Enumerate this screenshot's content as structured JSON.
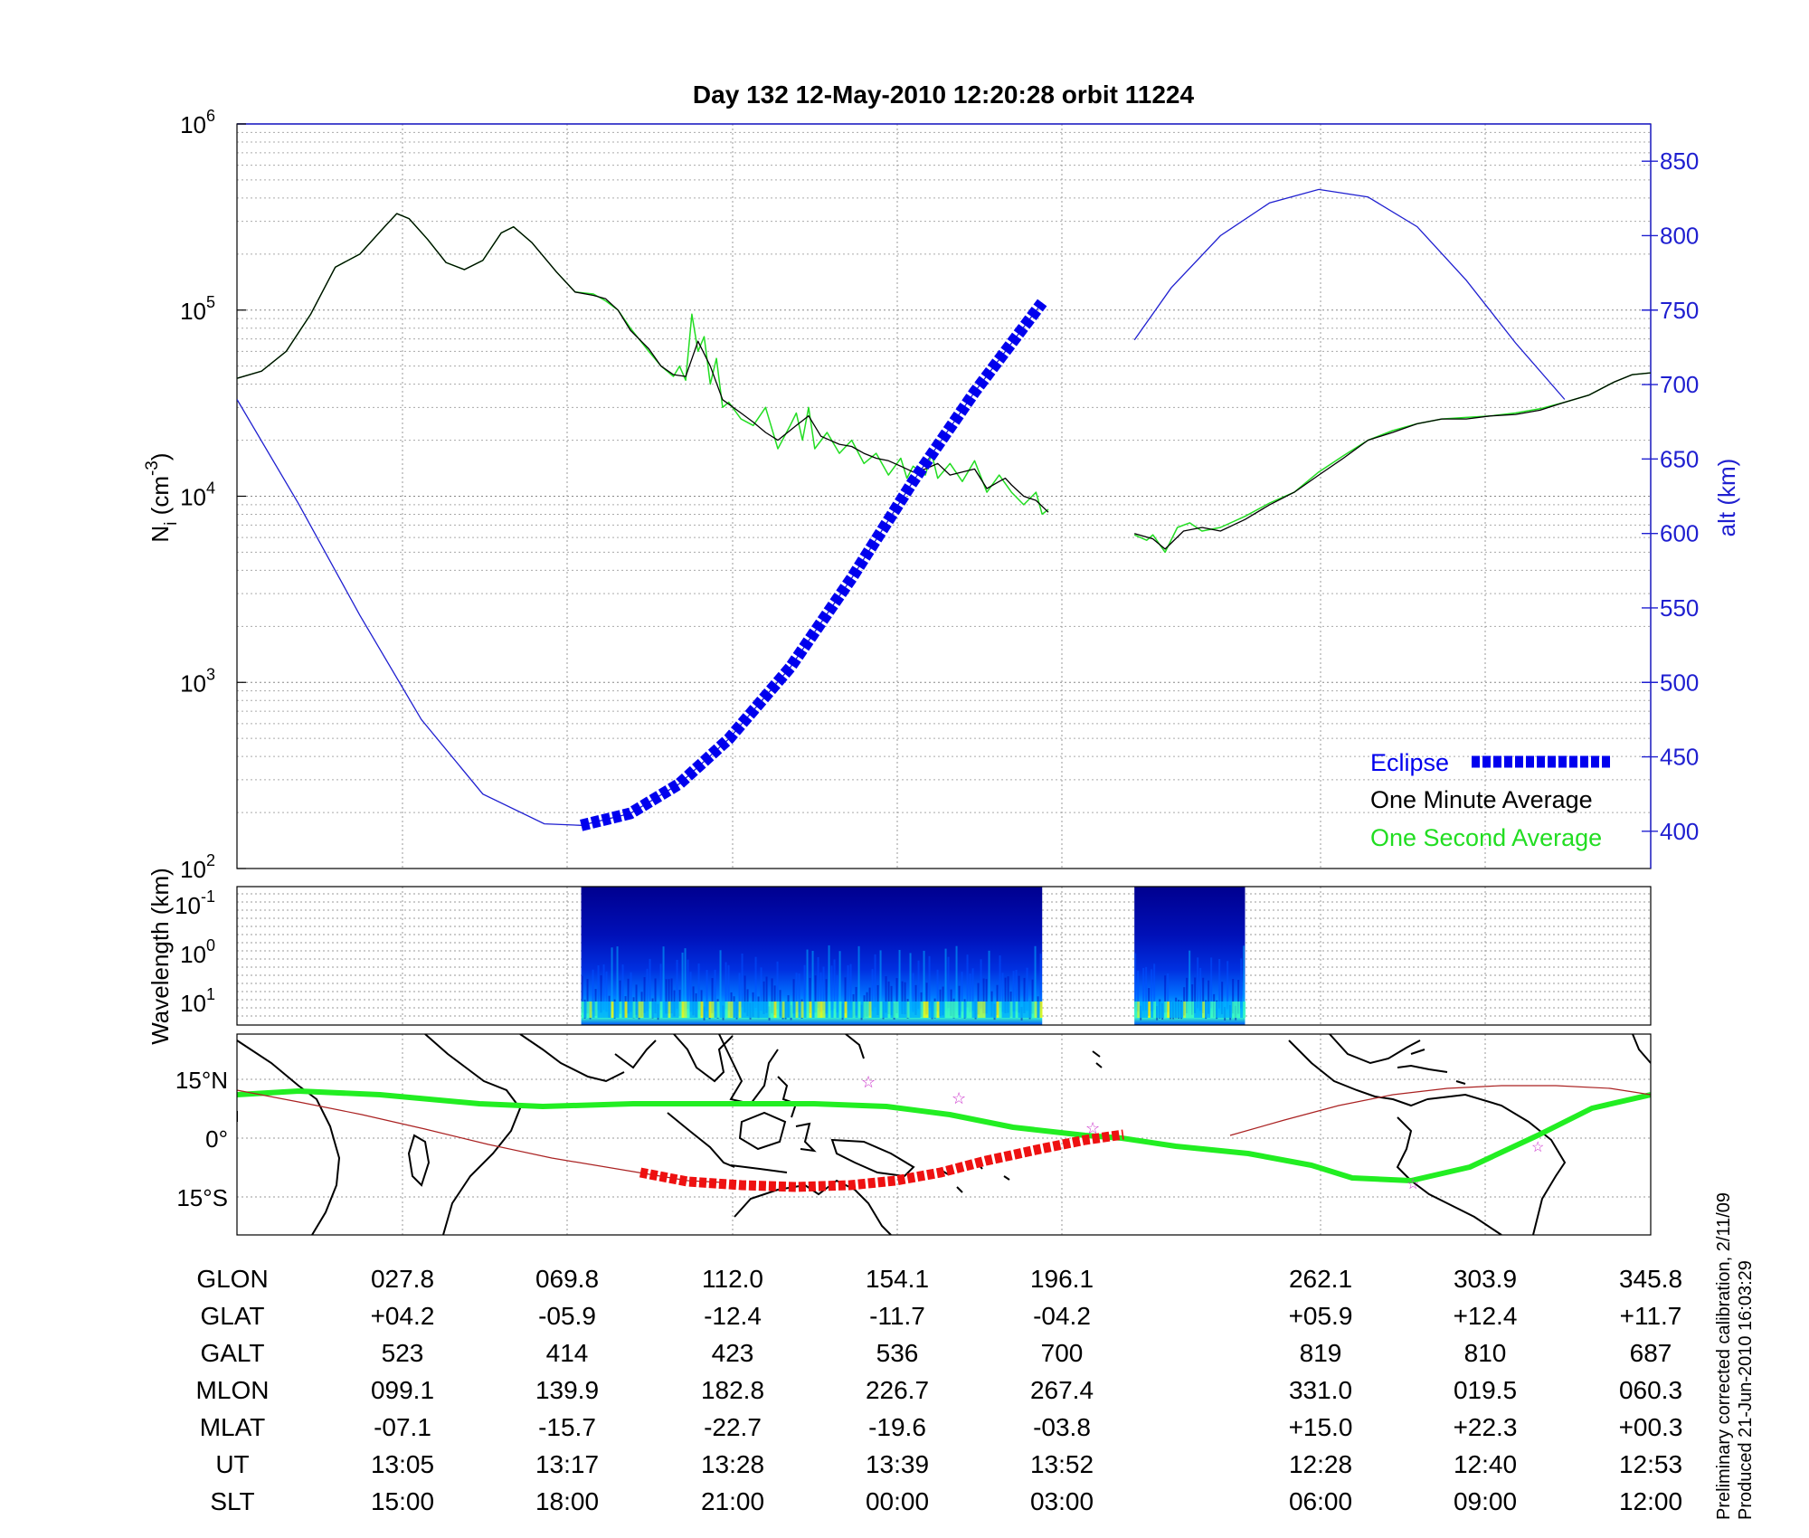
{
  "title": "Day 132  12-May-2010 12:20:28   orbit 11224",
  "colors": {
    "eclipse": "#0000ee",
    "one_minute": "#000000",
    "one_second": "#22dd22",
    "altitude_axis": "#1f1fd0",
    "map_track": "#22ee22",
    "map_eclipse": "#ee1111",
    "subsat_line": "#aa2222",
    "map_stars": "#cc33cc"
  },
  "chart_data": [
    {
      "type": "line",
      "panel": "density",
      "ylabel": "N_i (cm^-3)",
      "ylabel_main": "N",
      "ylabel_sub": "i",
      "ylabel_unit": " (cm",
      "ylabel_exp": "-3",
      "ylabel_close": ")",
      "yscale": "log",
      "ylim": [
        100,
        1000000
      ],
      "y_ticks": [
        {
          "base": "10",
          "exp": "2",
          "value": 100
        },
        {
          "base": "10",
          "exp": "3",
          "value": 1000
        },
        {
          "base": "10",
          "exp": "4",
          "value": 10000
        },
        {
          "base": "10",
          "exp": "5",
          "value": 100000
        },
        {
          "base": "10",
          "exp": "6",
          "value": 1000000
        }
      ],
      "y2label": "alt (km)",
      "y2lim": [
        375,
        875
      ],
      "y2_ticks": [
        "400",
        "450",
        "500",
        "550",
        "600",
        "650",
        "700",
        "750",
        "800",
        "850"
      ],
      "legend_position": "bottom-right",
      "legend": [
        "Eclipse",
        "One Minute Average",
        "One Second Average"
      ],
      "series": [
        {
          "name": "One Minute Average",
          "segments": [
            [
              [
                0,
                43000
              ],
              [
                0.02,
                47000
              ],
              [
                0.04,
                60000
              ],
              [
                0.06,
                95000
              ],
              [
                0.08,
                170000
              ],
              [
                0.1,
                200000
              ],
              [
                0.12,
                280000
              ],
              [
                0.13,
                330000
              ],
              [
                0.14,
                310000
              ],
              [
                0.155,
                240000
              ],
              [
                0.17,
                180000
              ],
              [
                0.185,
                165000
              ],
              [
                0.2,
                185000
              ],
              [
                0.215,
                260000
              ],
              [
                0.225,
                280000
              ],
              [
                0.24,
                230000
              ],
              [
                0.26,
                160000
              ],
              [
                0.275,
                125000
              ],
              [
                0.29,
                120000
              ],
              [
                0.3,
                115000
              ],
              [
                0.31,
                100000
              ],
              [
                0.32,
                78000
              ],
              [
                0.335,
                62000
              ],
              [
                0.345,
                50000
              ],
              [
                0.355,
                45000
              ],
              [
                0.365,
                44000
              ],
              [
                0.375,
                68000
              ],
              [
                0.385,
                50000
              ],
              [
                0.395,
                33000
              ],
              [
                0.41,
                28000
              ],
              [
                0.42,
                25000
              ],
              [
                0.43,
                22000
              ],
              [
                0.44,
                20000
              ],
              [
                0.455,
                24000
              ],
              [
                0.465,
                27000
              ],
              [
                0.475,
                21000
              ],
              [
                0.49,
                19000
              ],
              [
                0.5,
                18500
              ],
              [
                0.51,
                17000
              ],
              [
                0.52,
                16000
              ],
              [
                0.53,
                15500
              ],
              [
                0.54,
                14500
              ],
              [
                0.55,
                13500
              ],
              [
                0.56,
                14000
              ],
              [
                0.57,
                15000
              ],
              [
                0.58,
                13000
              ],
              [
                0.59,
                13500
              ],
              [
                0.6,
                14000
              ],
              [
                0.61,
                11000
              ],
              [
                0.62,
                12000
              ],
              [
                0.625,
                12500
              ],
              [
                0.63,
                11500
              ],
              [
                0.64,
                10000
              ],
              [
                0.65,
                9500
              ],
              [
                0.66,
                8200
              ]
            ],
            [
              [
                0.73,
                6300
              ],
              [
                0.745,
                5900
              ],
              [
                0.755,
                5200
              ],
              [
                0.77,
                6500
              ],
              [
                0.785,
                6800
              ],
              [
                0.8,
                6500
              ],
              [
                0.82,
                7500
              ],
              [
                0.84,
                9000
              ],
              [
                0.86,
                10500
              ],
              [
                0.88,
                13000
              ],
              [
                0.9,
                16000
              ],
              [
                0.92,
                20000
              ],
              [
                0.94,
                22000
              ],
              [
                0.96,
                24500
              ],
              [
                0.98,
                26000
              ],
              [
                1.0,
                26000
              ],
              [
                1.02,
                27000
              ],
              [
                1.04,
                27500
              ],
              [
                1.06,
                29000
              ],
              [
                1.08,
                32000
              ],
              [
                1.1,
                35000
              ],
              [
                1.12,
                41000
              ],
              [
                1.135,
                45000
              ],
              [
                1.15,
                46000
              ]
            ]
          ]
        },
        {
          "name": "One Second Average",
          "segments": [
            [
              [
                0,
                43000
              ],
              [
                0.02,
                47000
              ],
              [
                0.04,
                60000
              ],
              [
                0.06,
                95000
              ],
              [
                0.08,
                170000
              ],
              [
                0.1,
                200000
              ],
              [
                0.12,
                280000
              ],
              [
                0.13,
                330000
              ],
              [
                0.14,
                310000
              ],
              [
                0.155,
                240000
              ],
              [
                0.17,
                180000
              ],
              [
                0.185,
                165000
              ],
              [
                0.2,
                185000
              ],
              [
                0.215,
                260000
              ],
              [
                0.225,
                280000
              ],
              [
                0.24,
                230000
              ],
              [
                0.26,
                160000
              ],
              [
                0.275,
                125000
              ],
              [
                0.29,
                122000
              ],
              [
                0.3,
                112000
              ],
              [
                0.31,
                100000
              ],
              [
                0.32,
                80000
              ],
              [
                0.335,
                60000
              ],
              [
                0.345,
                50000
              ],
              [
                0.355,
                44000
              ],
              [
                0.36,
                50000
              ],
              [
                0.365,
                42000
              ],
              [
                0.37,
                95000
              ],
              [
                0.375,
                60000
              ],
              [
                0.38,
                72000
              ],
              [
                0.385,
                40000
              ],
              [
                0.39,
                55000
              ],
              [
                0.395,
                30000
              ],
              [
                0.4,
                32000
              ],
              [
                0.41,
                26000
              ],
              [
                0.42,
                24000
              ],
              [
                0.43,
                30000
              ],
              [
                0.44,
                18000
              ],
              [
                0.45,
                24000
              ],
              [
                0.455,
                28000
              ],
              [
                0.46,
                20000
              ],
              [
                0.465,
                30000
              ],
              [
                0.47,
                18000
              ],
              [
                0.48,
                22000
              ],
              [
                0.49,
                17000
              ],
              [
                0.5,
                20000
              ],
              [
                0.51,
                15000
              ],
              [
                0.52,
                17000
              ],
              [
                0.53,
                13000
              ],
              [
                0.54,
                16000
              ],
              [
                0.545,
                12500
              ],
              [
                0.55,
                14500
              ],
              [
                0.56,
                13000
              ],
              [
                0.565,
                17000
              ],
              [
                0.57,
                12500
              ],
              [
                0.58,
                15000
              ],
              [
                0.59,
                12000
              ],
              [
                0.6,
                15500
              ],
              [
                0.61,
                10500
              ],
              [
                0.62,
                13000
              ],
              [
                0.63,
                10500
              ],
              [
                0.64,
                9000
              ],
              [
                0.65,
                10500
              ],
              [
                0.655,
                8000
              ],
              [
                0.66,
                8500
              ]
            ],
            [
              [
                0.73,
                6200
              ],
              [
                0.74,
                5800
              ],
              [
                0.745,
                6200
              ],
              [
                0.755,
                5000
              ],
              [
                0.765,
                6800
              ],
              [
                0.775,
                7200
              ],
              [
                0.785,
                6500
              ],
              [
                0.8,
                6800
              ],
              [
                0.82,
                7800
              ],
              [
                0.84,
                9200
              ],
              [
                0.86,
                10500
              ],
              [
                0.88,
                13500
              ],
              [
                0.9,
                16500
              ],
              [
                0.92,
                20000
              ],
              [
                0.94,
                22500
              ],
              [
                0.96,
                24500
              ],
              [
                0.98,
                26000
              ],
              [
                1.0,
                26500
              ],
              [
                1.02,
                27000
              ],
              [
                1.04,
                28000
              ],
              [
                1.06,
                29500
              ],
              [
                1.08,
                32000
              ],
              [
                1.1,
                35000
              ],
              [
                1.12,
                41000
              ],
              [
                1.135,
                45000
              ],
              [
                1.15,
                46000
              ]
            ]
          ]
        },
        {
          "name": "Eclipse",
          "axis": "altitude",
          "x_range": [
            0.28,
            0.655
          ],
          "note": "altitude curve segment drawn as thick dashed line during eclipse"
        }
      ],
      "altitude_km": [
        [
          [
            0,
            690
          ],
          [
            0.05,
            620
          ],
          [
            0.1,
            545
          ],
          [
            0.15,
            475
          ],
          [
            0.2,
            425
          ],
          [
            0.25,
            405
          ],
          [
            0.28,
            404
          ],
          [
            0.32,
            412
          ],
          [
            0.36,
            432
          ],
          [
            0.4,
            462
          ],
          [
            0.45,
            510
          ],
          [
            0.5,
            570
          ],
          [
            0.55,
            635
          ],
          [
            0.6,
            695
          ],
          [
            0.655,
            755
          ]
        ],
        [
          [
            0.73,
            730
          ],
          [
            0.76,
            765
          ],
          [
            0.8,
            800
          ],
          [
            0.84,
            822
          ],
          [
            0.88,
            831
          ],
          [
            0.92,
            826
          ],
          [
            0.96,
            806
          ],
          [
            1.0,
            770
          ],
          [
            1.04,
            728
          ],
          [
            1.08,
            690
          ]
        ]
      ]
    },
    {
      "type": "heatmap",
      "panel": "spectrogram",
      "ylabel": "Wavelength (km)",
      "y_ticks": [
        {
          "base": "10",
          "exp": "-1"
        },
        {
          "base": "10",
          "exp": "0"
        },
        {
          "base": "10",
          "exp": "1"
        }
      ],
      "data_intervals": [
        [
          0.28,
          0.655
        ],
        [
          0.73,
          0.82
        ]
      ],
      "colormap": [
        "#00008f",
        "#0010c0",
        "#0050ff",
        "#00b0ff",
        "#40ffbf",
        "#bfff40",
        "#ffff00"
      ]
    },
    {
      "type": "map",
      "panel": "ground_track",
      "y_ticks": [
        "15°N",
        "0°",
        "15°S"
      ]
    }
  ],
  "table": {
    "row_labels": [
      "GLON",
      "GLAT",
      "GALT",
      "MLON",
      "MLAT",
      "UT",
      "SLT"
    ],
    "columns": [
      [
        "027.8",
        "+04.2",
        "523",
        "099.1",
        "-07.1",
        "13:05",
        "15:00"
      ],
      [
        "069.8",
        "-05.9",
        "414",
        "139.9",
        "-15.7",
        "13:17",
        "18:00"
      ],
      [
        "112.0",
        "-12.4",
        "423",
        "182.8",
        "-22.7",
        "13:28",
        "21:00"
      ],
      [
        "154.1",
        "-11.7",
        "536",
        "226.7",
        "-19.6",
        "13:39",
        "00:00"
      ],
      [
        "196.1",
        "-04.2",
        "700",
        "267.4",
        "-03.8",
        "13:52",
        "03:00"
      ],
      [
        "262.1",
        "+05.9",
        "819",
        "331.0",
        "+15.0",
        "12:28",
        "06:00"
      ],
      [
        "303.9",
        "+12.4",
        "810",
        "019.5",
        "+22.3",
        "12:40",
        "09:00"
      ],
      [
        "345.8",
        "+11.7",
        "687",
        "060.3",
        "+00.3",
        "12:53",
        "12:00"
      ]
    ]
  },
  "footnote": [
    "Preliminary corrected calibration, 2/11/09",
    "Produced 21-Jun-2010 16:03:29"
  ]
}
